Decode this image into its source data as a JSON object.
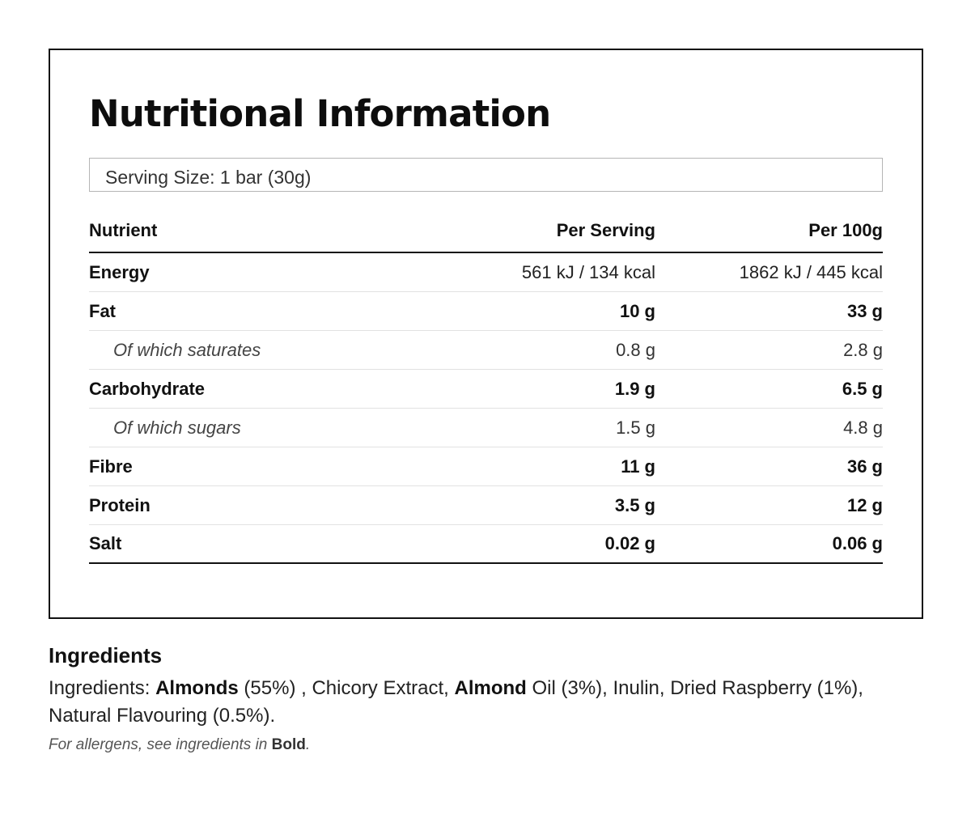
{
  "nutrition": {
    "title": "Nutritional Information",
    "serving_size": "Serving Size: 1 bar (30g)",
    "columns": {
      "nutrient": "Nutrient",
      "per_serving": "Per Serving",
      "per_100g": "Per 100g"
    },
    "rows": [
      {
        "name": "Energy",
        "per_serving": "561 kJ / 134 kcal",
        "per_100g": "1862 kJ / 445 kcal"
      },
      {
        "name": "Fat",
        "per_serving": "10 g",
        "per_100g": "33 g"
      },
      {
        "name": "Of which saturates",
        "per_serving": "0.8 g",
        "per_100g": "2.8 g"
      },
      {
        "name": "Carbohydrate",
        "per_serving": "1.9 g",
        "per_100g": "6.5 g"
      },
      {
        "name": "Of which sugars",
        "per_serving": "1.5 g",
        "per_100g": "4.8 g"
      },
      {
        "name": "Fibre",
        "per_serving": "11 g",
        "per_100g": "36 g"
      },
      {
        "name": "Protein",
        "per_serving": "3.5 g",
        "per_100g": "12 g"
      },
      {
        "name": "Salt",
        "per_serving": "0.02 g",
        "per_100g": "0.06 g"
      }
    ]
  },
  "ingredients": {
    "heading": "Ingredients",
    "prefix": "Ingredients: ",
    "parts": [
      {
        "text": "Almonds",
        "bold": true
      },
      {
        "text": " (55%) , Chicory Extract, ",
        "bold": false
      },
      {
        "text": "Almond",
        "bold": true
      },
      {
        "text": " Oil (3%), Inulin, Dried Raspberry (1%), Natural Flavouring (0.5%).",
        "bold": false
      }
    ],
    "allergen_note_prefix": "For allergens, see ingredients in ",
    "allergen_note_bold": "Bold",
    "allergen_note_suffix": "."
  }
}
